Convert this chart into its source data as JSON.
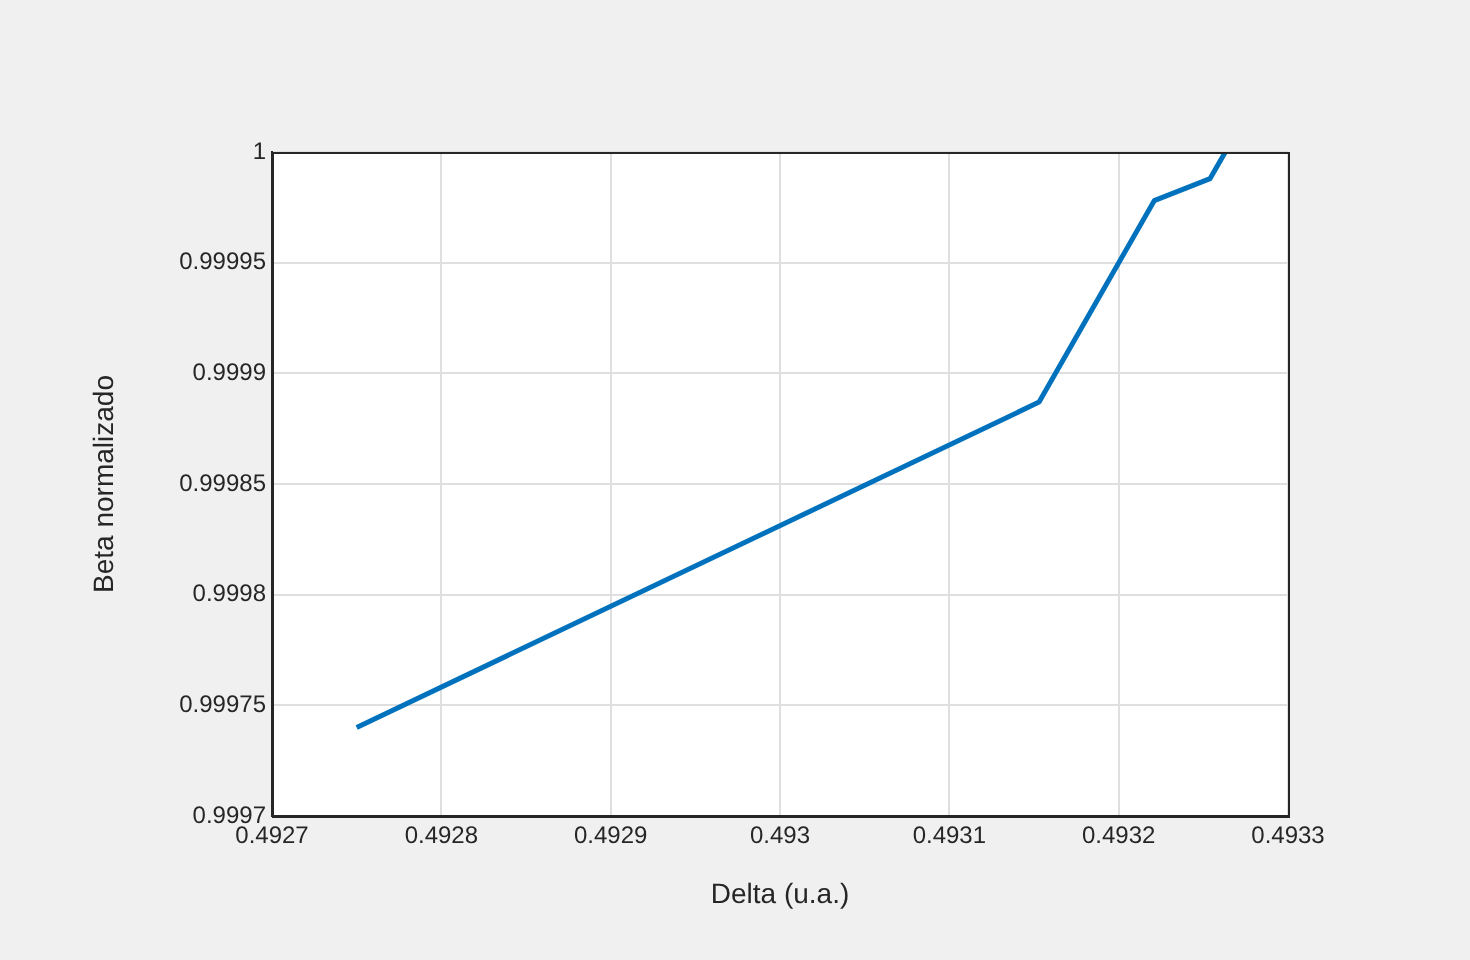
{
  "chart_data": {
    "type": "line",
    "xlabel": "Delta (u.a.)",
    "ylabel": "Beta normalizado",
    "x": [
      0.49275,
      0.493153,
      0.493221,
      0.493254,
      0.493263
    ],
    "series": [
      {
        "color": "#0072bd",
        "values": [
          0.99974,
          0.999887,
          0.999978,
          0.999988,
          1.0
        ]
      }
    ],
    "xlim": [
      0.4927,
      0.4933
    ],
    "xticks": [
      0.4927,
      0.4928,
      0.4929,
      0.493,
      0.4931,
      0.4932,
      0.4933
    ],
    "ylim": [
      0.9997,
      1
    ],
    "yticks": [
      0.9997,
      0.99975,
      0.9998,
      0.99985,
      0.9999,
      0.99995,
      1
    ],
    "grid": true,
    "legend": false,
    "marker": "none",
    "line_style": "solid"
  }
}
